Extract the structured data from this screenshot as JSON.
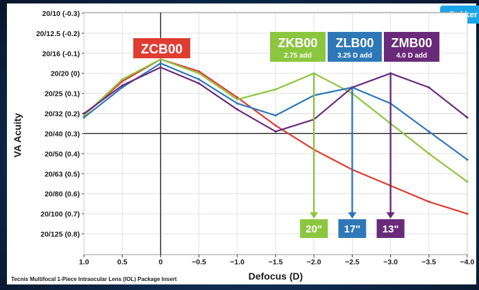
{
  "corner_badge": "Bukker",
  "footnote": "Tecnis Multifocal 1-Piece Intraocular Lens (IOL) Package Insert",
  "chart_data": {
    "type": "line",
    "title": "",
    "xlabel": "Defocus (D)",
    "ylabel": "VA Acuity",
    "xlim": [
      1.0,
      -4.0
    ],
    "ylim": [
      -0.3,
      0.8
    ],
    "x_ticks": [
      1.0,
      0.5,
      0,
      -0.5,
      -1.0,
      -1.5,
      -2.0,
      -2.5,
      -3.0,
      -3.5,
      -4.0
    ],
    "x_tick_labels": [
      "1.0",
      "0.5",
      "0",
      "−0.5",
      "−1.0",
      "−1.5",
      "−2.0",
      "−2.5",
      "−3.0",
      "−3.5",
      "−4.0"
    ],
    "y_ticks": [
      -0.3,
      -0.2,
      -0.1,
      0.0,
      0.1,
      0.2,
      0.3,
      0.4,
      0.5,
      0.6,
      0.7,
      0.8
    ],
    "y_tick_labels": [
      "20/10 (-0.3)",
      "20/12.5 (-0.2)",
      "20/16 (-0.1)",
      "20/20 (0)",
      "20/25 (0.1)",
      "20/32 (0.2)",
      "20/40 (0.3)",
      "20/50 (0.4)",
      "20/63 (0.5)",
      "20/80 (0.6)",
      "20/100 (0.7)",
      "20/125 (0.8)"
    ],
    "reference_lines": {
      "x": 0,
      "y": 0.3
    },
    "series": [
      {
        "name": "ZCB00",
        "subtitle": "",
        "color": "#e03c31",
        "x": [
          1.0,
          0.5,
          0,
          -0.5,
          -1.0,
          -1.5,
          -2.0,
          -2.5,
          -3.0,
          -3.5,
          -4.0
        ],
        "y": [
          0.21,
          0.04,
          -0.07,
          -0.01,
          0.12,
          0.26,
          0.38,
          0.48,
          0.56,
          0.64,
          0.7
        ]
      },
      {
        "name": "ZKB00",
        "subtitle": "2.75 add",
        "color": "#8cc63f",
        "x": [
          1.0,
          0.5,
          0,
          -0.5,
          -1.0,
          -1.5,
          -2.0,
          -2.5,
          -3.0,
          -3.5,
          -4.0
        ],
        "y": [
          0.21,
          0.03,
          -0.07,
          0.0,
          0.13,
          0.08,
          0.0,
          0.1,
          0.25,
          0.4,
          0.54
        ]
      },
      {
        "name": "ZLB00",
        "subtitle": "3.25 D add",
        "color": "#2e78b7",
        "x": [
          1.0,
          0.5,
          0,
          -0.5,
          -1.0,
          -1.5,
          -2.0,
          -2.5,
          -3.0,
          -3.5,
          -4.0
        ],
        "y": [
          0.22,
          0.07,
          -0.05,
          0.03,
          0.15,
          0.21,
          0.11,
          0.07,
          0.15,
          0.29,
          0.43
        ]
      },
      {
        "name": "ZMB00",
        "subtitle": "4.0 D add",
        "color": "#6a2a7a",
        "x": [
          1.0,
          0.5,
          0,
          -0.5,
          -1.0,
          -1.5,
          -2.0,
          -2.5,
          -3.0,
          -3.5,
          -4.0
        ],
        "y": [
          0.2,
          0.06,
          -0.03,
          0.05,
          0.18,
          0.29,
          0.23,
          0.07,
          0.0,
          0.07,
          0.22
        ]
      }
    ],
    "annotations": [
      {
        "label": "20\"",
        "x": -2.0,
        "series": "ZKB00",
        "color": "#8cc63f"
      },
      {
        "label": "17\"",
        "x": -2.5,
        "series": "ZLB00",
        "color": "#2e78b7"
      },
      {
        "label": "13\"",
        "x": -3.0,
        "series": "ZMB00",
        "color": "#6a2a7a"
      }
    ]
  }
}
